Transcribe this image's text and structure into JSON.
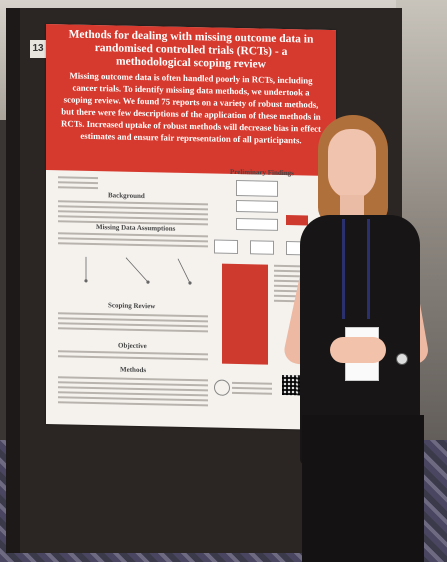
{
  "poster": {
    "number": "13",
    "title": "Methods for dealing with missing outcome data in randomised controlled trials (RCTs) - a methodological scoping review",
    "abstract": "Missing outcome data is often handled poorly in RCTs, including cancer trials. To identify missing data methods, we undertook a scoping review. We found 75 reports on a variety of robust methods, but there were few descriptions of the application of these methods in RCTs. Increased uptake of robust methods will decrease bias in effect estimates and ensure fair representation of all participants.",
    "sections": {
      "background": "Background",
      "missing_data": "Missing Data Assumptions",
      "scoping": "Scoping Review",
      "objective": "Objective",
      "methods": "Methods",
      "findings": "Preliminary Findings"
    }
  },
  "colors": {
    "poster_red": "#d63a2f",
    "board": "#2b2624"
  }
}
